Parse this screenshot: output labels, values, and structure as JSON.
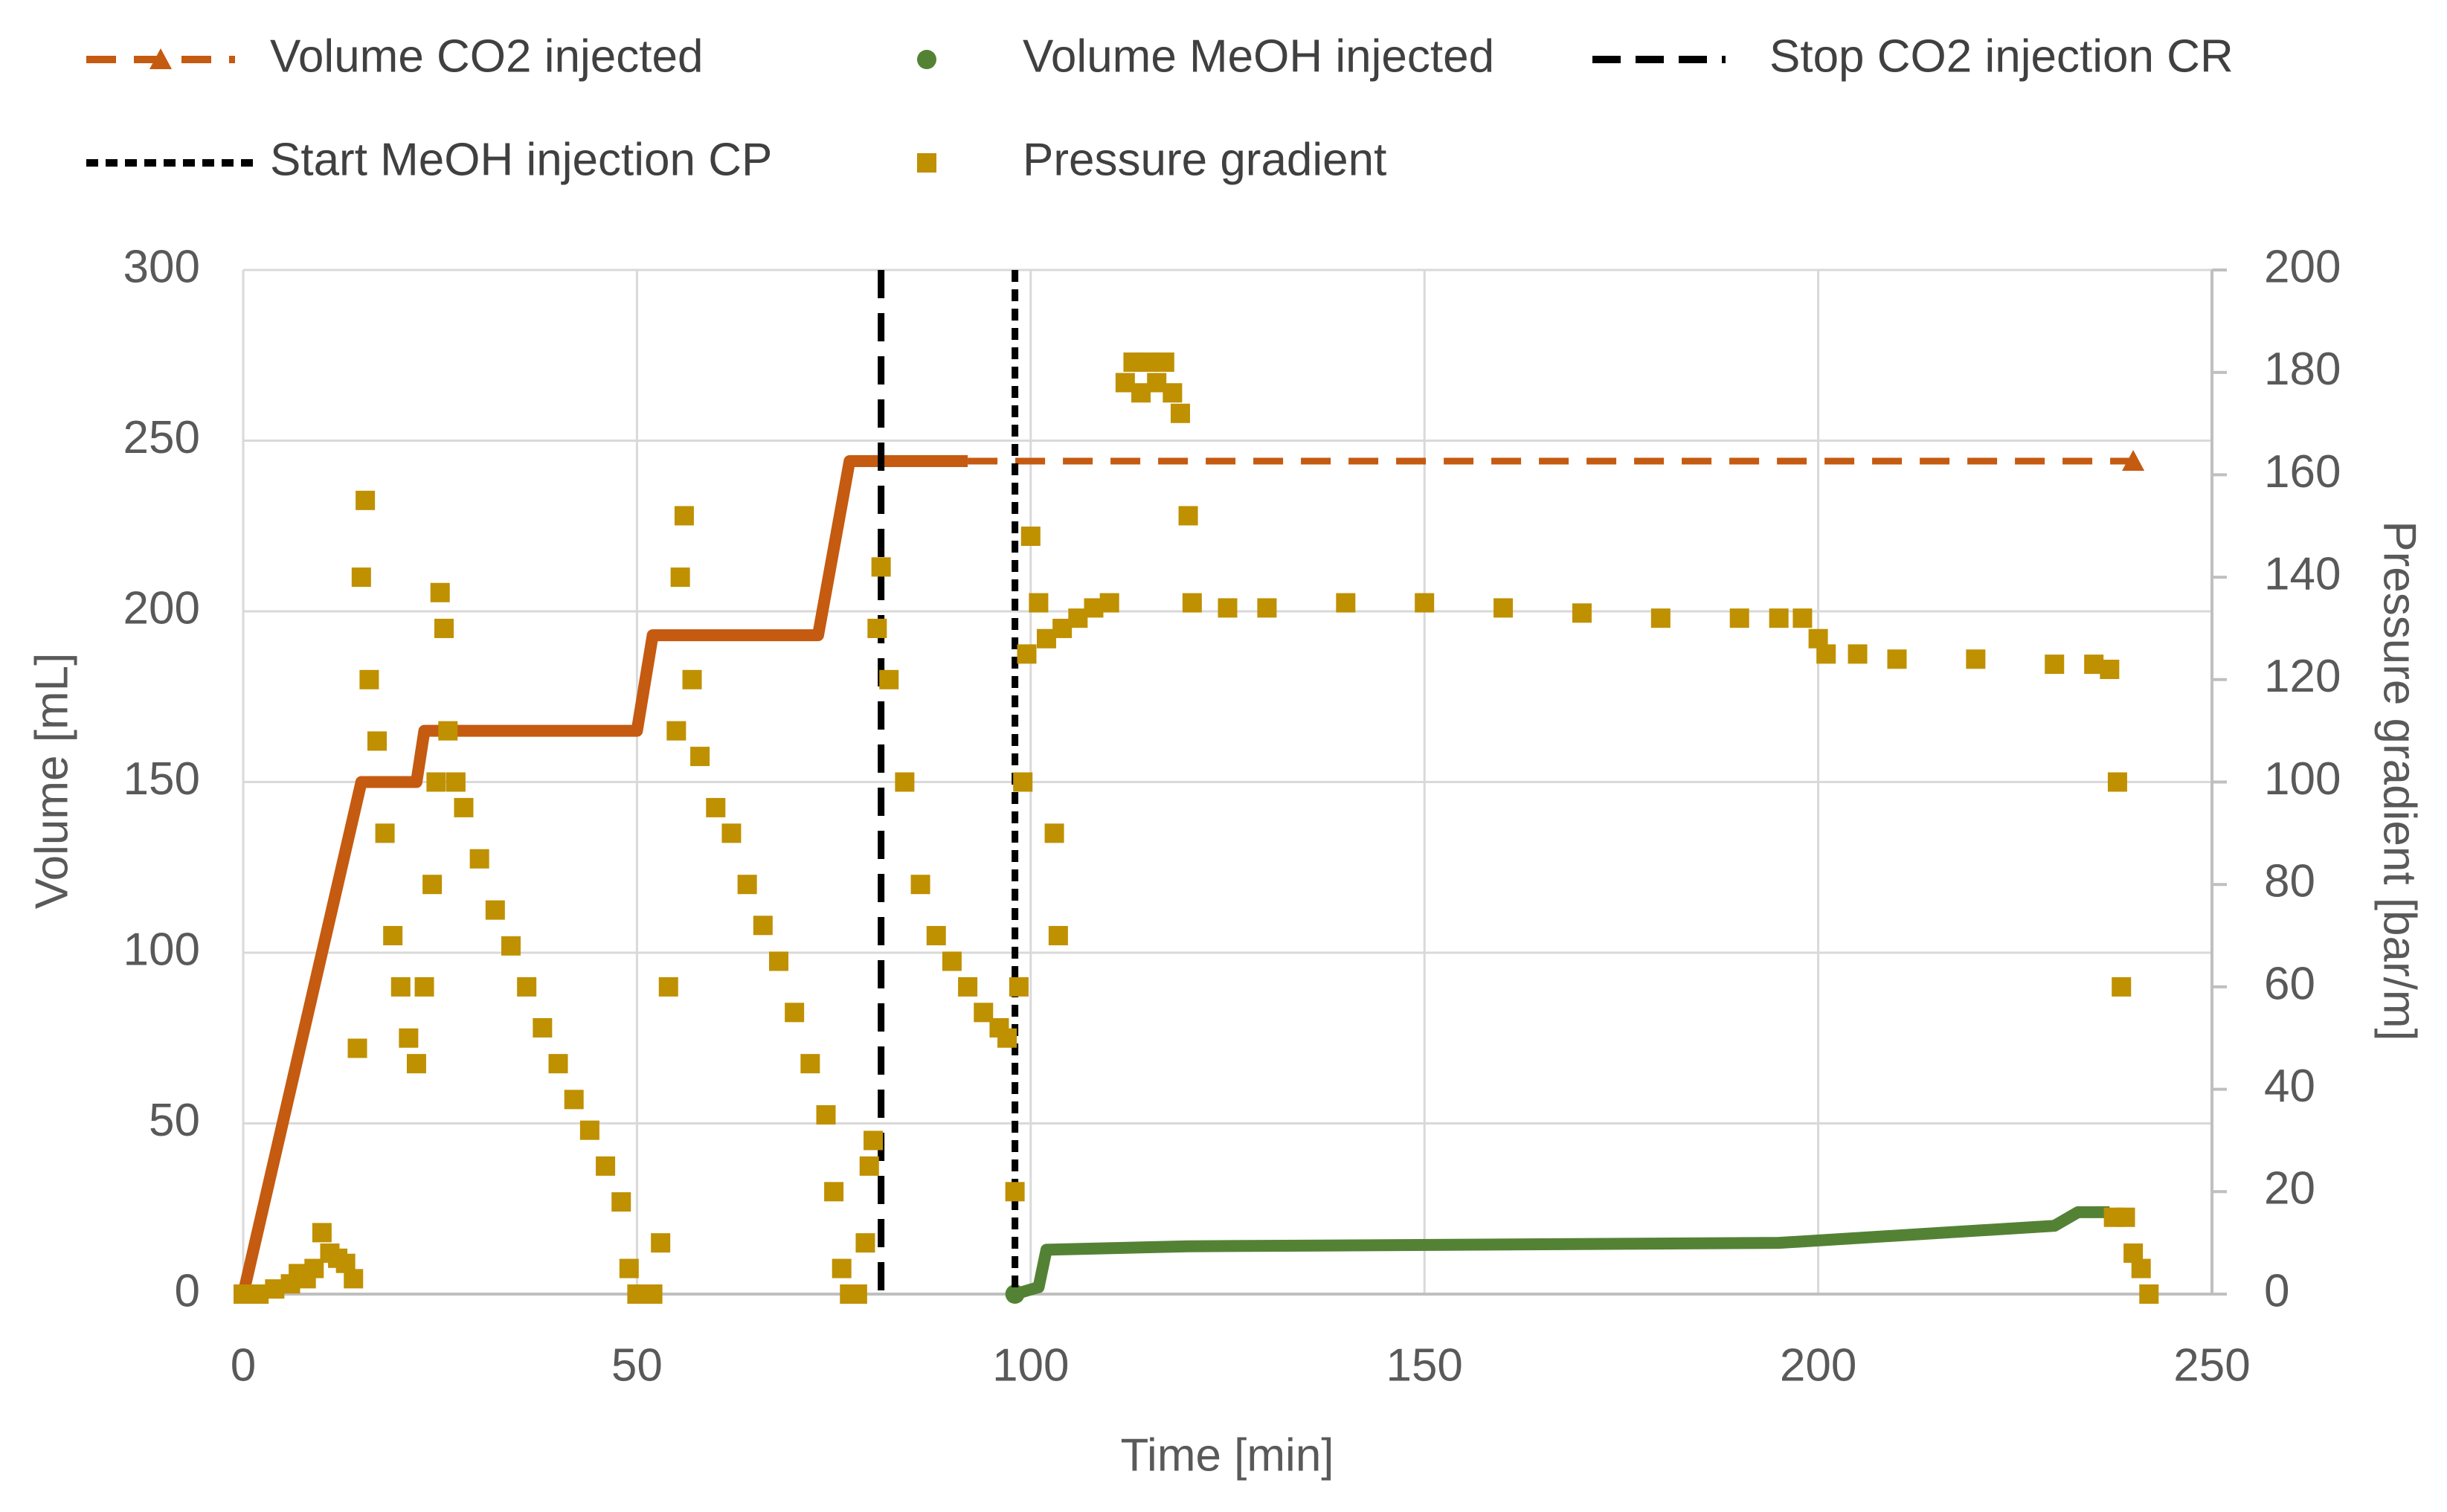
{
  "chart_data": {
    "type": "line",
    "xlabel": "Time [min]",
    "ylabel": "Volume [mL]",
    "y2label": "Pressure gradient [bar/m]",
    "xlim": [
      0,
      250
    ],
    "xticks": [
      0,
      50,
      100,
      150,
      200,
      250
    ],
    "ylim": [
      0,
      300
    ],
    "yticks": [
      0,
      50,
      100,
      150,
      200,
      250,
      300
    ],
    "y2lim": [
      0,
      200
    ],
    "y2ticks": [
      0,
      20,
      40,
      60,
      80,
      100,
      120,
      140,
      160,
      180,
      200
    ],
    "grid": true,
    "legend": "top",
    "series": [
      {
        "name": "Volume CO2 injected",
        "type": "line",
        "color": "#c55a11",
        "marker": "triangle",
        "x": [
          0,
          15,
          22,
          23,
          50,
          52,
          73,
          77,
          92,
          240
        ],
        "values": [
          0,
          150,
          150,
          165,
          165,
          193,
          193,
          244,
          244,
          244
        ]
      },
      {
        "name": "Volume MeOH injected",
        "type": "line",
        "color": "#548235",
        "marker": "circle",
        "x": [
          98,
          101,
          102,
          120,
          195,
          230,
          233,
          237
        ],
        "values": [
          0,
          2,
          13,
          14,
          15,
          20,
          24,
          24
        ]
      },
      {
        "name": "Stop CO2 injection CR",
        "type": "vline",
        "color": "#000000",
        "dash": "long",
        "x": 81
      },
      {
        "name": "Start MeOH injection CP",
        "type": "vline",
        "color": "#000000",
        "dash": "short",
        "x": 98
      },
      {
        "name": "Pressure gradient",
        "type": "scatter",
        "color": "#bf9000",
        "marker": "square",
        "axis": "y2",
        "x": [
          0,
          2,
          4,
          6,
          7,
          8,
          9,
          10,
          11,
          12,
          13,
          14,
          14.5,
          15,
          15.5,
          16,
          17,
          18,
          19,
          20,
          21,
          22,
          23,
          24,
          24.5,
          25,
          25.5,
          26,
          27,
          28,
          30,
          32,
          34,
          36,
          38,
          40,
          42,
          44,
          46,
          48,
          49,
          50,
          52,
          53,
          54,
          55,
          55.5,
          56,
          57,
          58,
          60,
          62,
          64,
          66,
          68,
          70,
          72,
          74,
          75,
          76,
          77,
          78,
          79,
          79.5,
          80,
          80.5,
          81,
          82,
          84,
          86,
          88,
          90,
          92,
          94,
          96,
          97,
          98,
          98.5,
          99,
          99.5,
          100,
          101,
          102,
          103,
          103.5,
          104,
          106,
          108,
          110,
          112,
          113,
          114,
          115,
          116,
          117,
          118,
          119,
          120,
          120.5,
          125,
          130,
          140,
          150,
          160,
          170,
          180,
          190,
          195,
          198,
          200,
          201,
          205,
          210,
          220,
          230,
          235,
          237,
          237.5,
          238,
          238.5,
          239,
          240,
          241,
          242
        ],
        "values": [
          0,
          0,
          1,
          2,
          4,
          3,
          5,
          12,
          8,
          7,
          6,
          3,
          48,
          140,
          155,
          120,
          108,
          90,
          70,
          60,
          50,
          45,
          60,
          80,
          100,
          137,
          130,
          110,
          100,
          95,
          85,
          75,
          68,
          60,
          52,
          45,
          38,
          32,
          25,
          18,
          5,
          0,
          0,
          10,
          60,
          110,
          140,
          152,
          120,
          105,
          95,
          90,
          80,
          72,
          65,
          55,
          45,
          35,
          20,
          5,
          0,
          0,
          10,
          25,
          30,
          130,
          142,
          120,
          100,
          80,
          70,
          65,
          60,
          55,
          52,
          50,
          20,
          60,
          100,
          125,
          148,
          135,
          128,
          90,
          70,
          130,
          132,
          134,
          135,
          178,
          182,
          176,
          182,
          178,
          182,
          176,
          172,
          152,
          135,
          134,
          134,
          135,
          135,
          134,
          133,
          132,
          132,
          132,
          132,
          128,
          125,
          125,
          124,
          124,
          123,
          123,
          122,
          15,
          100,
          60,
          15,
          8,
          5,
          0
        ]
      }
    ]
  }
}
